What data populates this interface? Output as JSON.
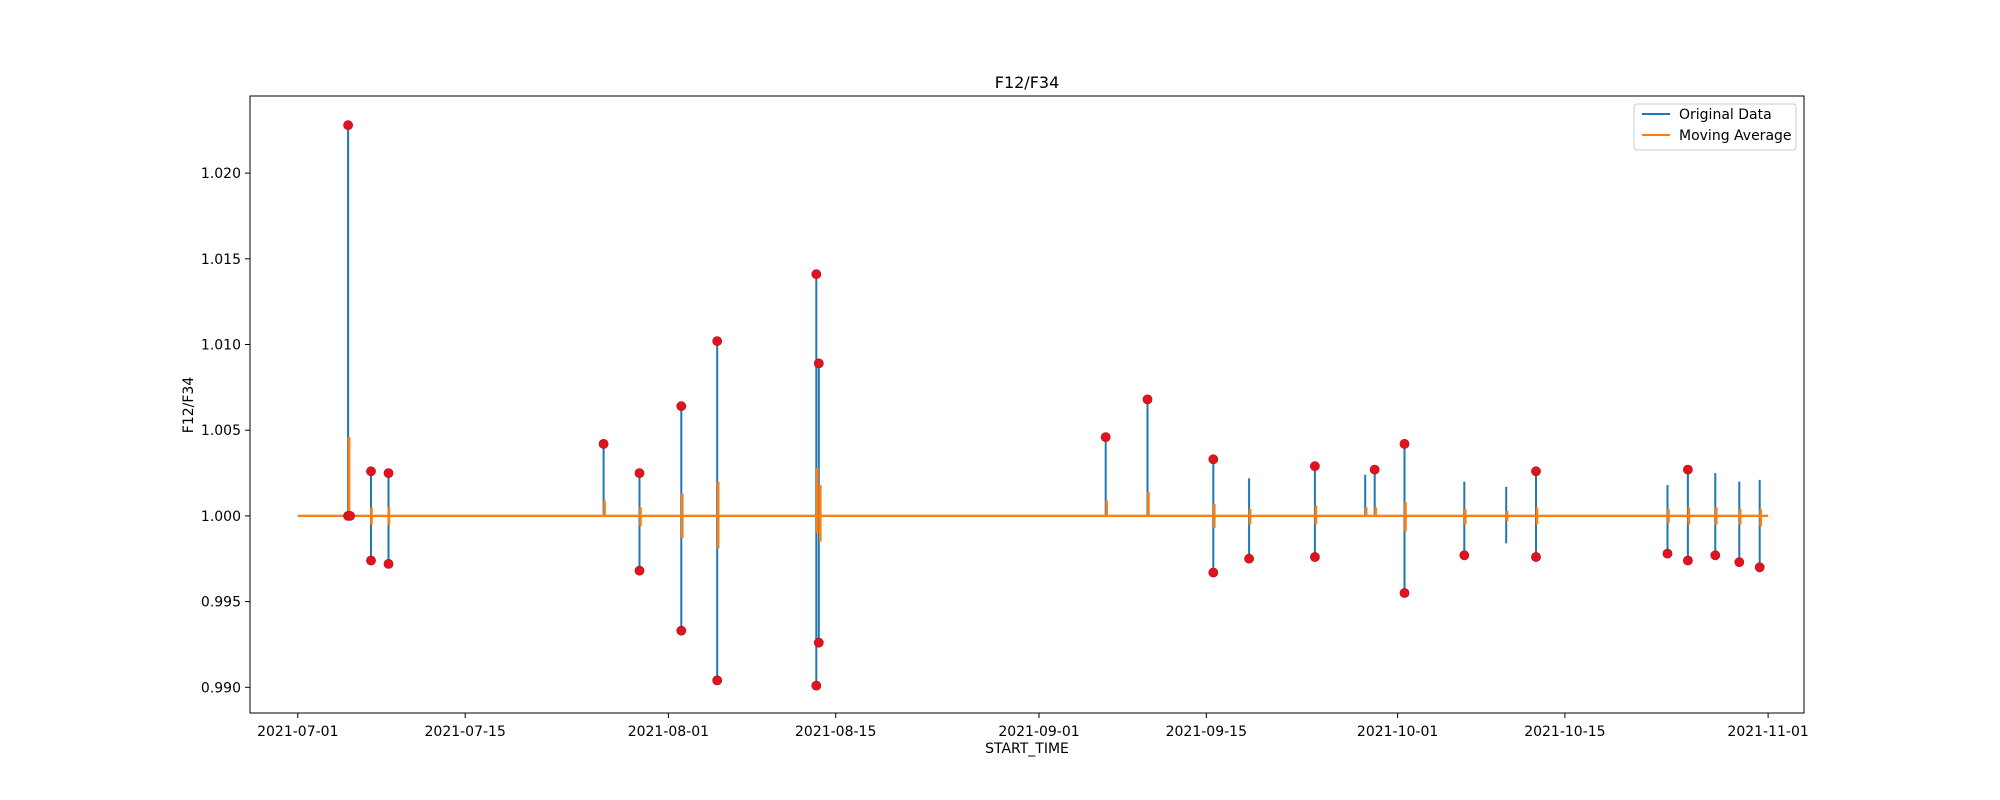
{
  "chart_data": {
    "type": "line",
    "title": "F12/F34",
    "xlabel": "START_TIME",
    "ylabel": "F12/F34",
    "x_type": "date",
    "xlim": [
      "2021-06-27",
      "2021-11-04"
    ],
    "ylim": [
      0.9885,
      1.0245
    ],
    "x_ticks": [
      "2021-07-01",
      "2021-07-15",
      "2021-08-01",
      "2021-08-15",
      "2021-09-01",
      "2021-09-15",
      "2021-10-01",
      "2021-10-15",
      "2021-11-01"
    ],
    "y_ticks": [
      "0.990",
      "0.995",
      "1.000",
      "1.005",
      "1.010",
      "1.015",
      "1.020"
    ],
    "legend_position": "top-right",
    "baseline": 1.0,
    "baseline_range": [
      "2021-07-01",
      "2021-11-01"
    ],
    "series": [
      {
        "name": "Original Data",
        "color": "#1f77b4",
        "spikes": [
          {
            "x": "2021-07-05 05:00",
            "min": 1.0,
            "max": 1.0228
          },
          {
            "x": "2021-07-07 03:00",
            "min": 0.9974,
            "max": 1.0026
          },
          {
            "x": "2021-07-08 14:00",
            "min": 0.9972,
            "max": 1.0025
          },
          {
            "x": "2021-07-26 14:00",
            "min": 1.0,
            "max": 1.0042
          },
          {
            "x": "2021-07-29 14:00",
            "min": 0.9968,
            "max": 1.0025
          },
          {
            "x": "2021-08-02 02:00",
            "min": 0.9933,
            "max": 1.0064
          },
          {
            "x": "2021-08-05 02:00",
            "min": 0.9904,
            "max": 1.0102
          },
          {
            "x": "2021-08-13 09:00",
            "min": 0.9901,
            "max": 1.0141
          },
          {
            "x": "2021-08-13 14:00",
            "min": 0.9926,
            "max": 1.0089
          },
          {
            "x": "2021-09-06 14:00",
            "min": 1.0,
            "max": 1.0046
          },
          {
            "x": "2021-09-10 02:00",
            "min": 1.0,
            "max": 1.0068
          },
          {
            "x": "2021-09-15 14:00",
            "min": 0.9967,
            "max": 1.0033
          },
          {
            "x": "2021-09-18 14:00",
            "min": 0.9975,
            "max": 1.0022
          },
          {
            "x": "2021-09-24 02:00",
            "min": 0.9976,
            "max": 1.0029
          },
          {
            "x": "2021-09-28 07:00",
            "min": 1.0,
            "max": 1.0024
          },
          {
            "x": "2021-09-29 02:00",
            "min": 1.0,
            "max": 1.0027
          },
          {
            "x": "2021-10-01 14:00",
            "min": 0.9955,
            "max": 1.0042
          },
          {
            "x": "2021-10-06 14:00",
            "min": 0.9977,
            "max": 1.002
          },
          {
            "x": "2021-10-10 02:00",
            "min": 0.9984,
            "max": 1.0017
          },
          {
            "x": "2021-10-12 14:00",
            "min": 0.9976,
            "max": 1.0026
          },
          {
            "x": "2021-10-23 14:00",
            "min": 0.9978,
            "max": 1.0018
          },
          {
            "x": "2021-10-25 07:00",
            "min": 0.9974,
            "max": 1.0027
          },
          {
            "x": "2021-10-27 14:00",
            "min": 0.9977,
            "max": 1.0025
          },
          {
            "x": "2021-10-29 14:00",
            "min": 0.9973,
            "max": 1.002
          },
          {
            "x": "2021-10-31 07:00",
            "min": 0.997,
            "max": 1.0021
          }
        ]
      },
      {
        "name": "Moving Average",
        "color": "#ff7f0e",
        "spikes": [
          {
            "x": "2021-07-05 07:00",
            "min": 1.0,
            "max": 1.0046
          },
          {
            "x": "2021-07-07 04:00",
            "min": 0.9995,
            "max": 1.0005
          },
          {
            "x": "2021-07-08 15:00",
            "min": 0.9995,
            "max": 1.0005
          },
          {
            "x": "2021-07-26 16:00",
            "min": 1.0,
            "max": 1.0009
          },
          {
            "x": "2021-07-29 16:00",
            "min": 0.9994,
            "max": 1.0005
          },
          {
            "x": "2021-08-02 04:00",
            "min": 0.9987,
            "max": 1.0013
          },
          {
            "x": "2021-08-05 04:00",
            "min": 0.9981,
            "max": 1.002
          },
          {
            "x": "2021-08-13 11:00",
            "min": 0.999,
            "max": 1.0028
          },
          {
            "x": "2021-08-13 17:00",
            "min": 0.9985,
            "max": 1.0018
          },
          {
            "x": "2021-09-06 16:00",
            "min": 1.0,
            "max": 1.0009
          },
          {
            "x": "2021-09-10 04:00",
            "min": 1.0,
            "max": 1.0014
          },
          {
            "x": "2021-09-15 16:00",
            "min": 0.9993,
            "max": 1.0007
          },
          {
            "x": "2021-09-18 16:00",
            "min": 0.9995,
            "max": 1.0004
          },
          {
            "x": "2021-09-24 04:00",
            "min": 0.9995,
            "max": 1.0006
          },
          {
            "x": "2021-09-28 09:00",
            "min": 1.0,
            "max": 1.0005
          },
          {
            "x": "2021-09-29 04:00",
            "min": 1.0,
            "max": 1.0005
          },
          {
            "x": "2021-10-01 16:00",
            "min": 0.9991,
            "max": 1.0008
          },
          {
            "x": "2021-10-06 16:00",
            "min": 0.9995,
            "max": 1.0004
          },
          {
            "x": "2021-10-10 04:00",
            "min": 0.9997,
            "max": 1.0003
          },
          {
            "x": "2021-10-12 16:00",
            "min": 0.9995,
            "max": 1.0005
          },
          {
            "x": "2021-10-23 16:00",
            "min": 0.9996,
            "max": 1.0004
          },
          {
            "x": "2021-10-25 09:00",
            "min": 0.9995,
            "max": 1.0005
          },
          {
            "x": "2021-10-27 16:00",
            "min": 0.9995,
            "max": 1.0005
          },
          {
            "x": "2021-10-29 16:00",
            "min": 0.9995,
            "max": 1.0004
          },
          {
            "x": "2021-10-31 09:00",
            "min": 0.9994,
            "max": 1.0004
          }
        ]
      },
      {
        "name": "",
        "type": "scatter",
        "color": "#e0141e",
        "points": [
          {
            "x": "2021-07-05 05:00",
            "y": 1.0228
          },
          {
            "x": "2021-07-05 05:00",
            "y": 1.0
          },
          {
            "x": "2021-07-05 09:00",
            "y": 1.0
          },
          {
            "x": "2021-07-07 03:00",
            "y": 1.0026
          },
          {
            "x": "2021-07-07 03:00",
            "y": 0.9974
          },
          {
            "x": "2021-07-08 14:00",
            "y": 1.0025
          },
          {
            "x": "2021-07-08 14:00",
            "y": 0.9972
          },
          {
            "x": "2021-07-26 14:00",
            "y": 1.0042
          },
          {
            "x": "2021-07-29 14:00",
            "y": 1.0025
          },
          {
            "x": "2021-07-29 14:00",
            "y": 0.9968
          },
          {
            "x": "2021-08-02 02:00",
            "y": 1.0064
          },
          {
            "x": "2021-08-02 02:00",
            "y": 0.9933
          },
          {
            "x": "2021-08-05 02:00",
            "y": 1.0102
          },
          {
            "x": "2021-08-05 02:00",
            "y": 0.9904
          },
          {
            "x": "2021-08-13 09:00",
            "y": 1.0141
          },
          {
            "x": "2021-08-13 09:00",
            "y": 0.9901
          },
          {
            "x": "2021-08-13 14:00",
            "y": 1.0089
          },
          {
            "x": "2021-08-13 14:00",
            "y": 0.9926
          },
          {
            "x": "2021-09-06 14:00",
            "y": 1.0046
          },
          {
            "x": "2021-09-10 02:00",
            "y": 1.0068
          },
          {
            "x": "2021-09-15 14:00",
            "y": 1.0033
          },
          {
            "x": "2021-09-15 14:00",
            "y": 0.9967
          },
          {
            "x": "2021-09-18 14:00",
            "y": 0.9975
          },
          {
            "x": "2021-09-24 02:00",
            "y": 1.0029
          },
          {
            "x": "2021-09-24 02:00",
            "y": 0.9976
          },
          {
            "x": "2021-09-29 02:00",
            "y": 1.0027
          },
          {
            "x": "2021-10-01 14:00",
            "y": 1.0042
          },
          {
            "x": "2021-10-01 14:00",
            "y": 0.9955
          },
          {
            "x": "2021-10-06 14:00",
            "y": 0.9977
          },
          {
            "x": "2021-10-12 14:00",
            "y": 1.0026
          },
          {
            "x": "2021-10-12 14:00",
            "y": 0.9976
          },
          {
            "x": "2021-10-23 14:00",
            "y": 0.9978
          },
          {
            "x": "2021-10-25 07:00",
            "y": 1.0027
          },
          {
            "x": "2021-10-25 07:00",
            "y": 0.9974
          },
          {
            "x": "2021-10-27 14:00",
            "y": 0.9977
          },
          {
            "x": "2021-10-29 14:00",
            "y": 0.9973
          },
          {
            "x": "2021-10-31 07:00",
            "y": 0.997
          }
        ]
      }
    ]
  }
}
